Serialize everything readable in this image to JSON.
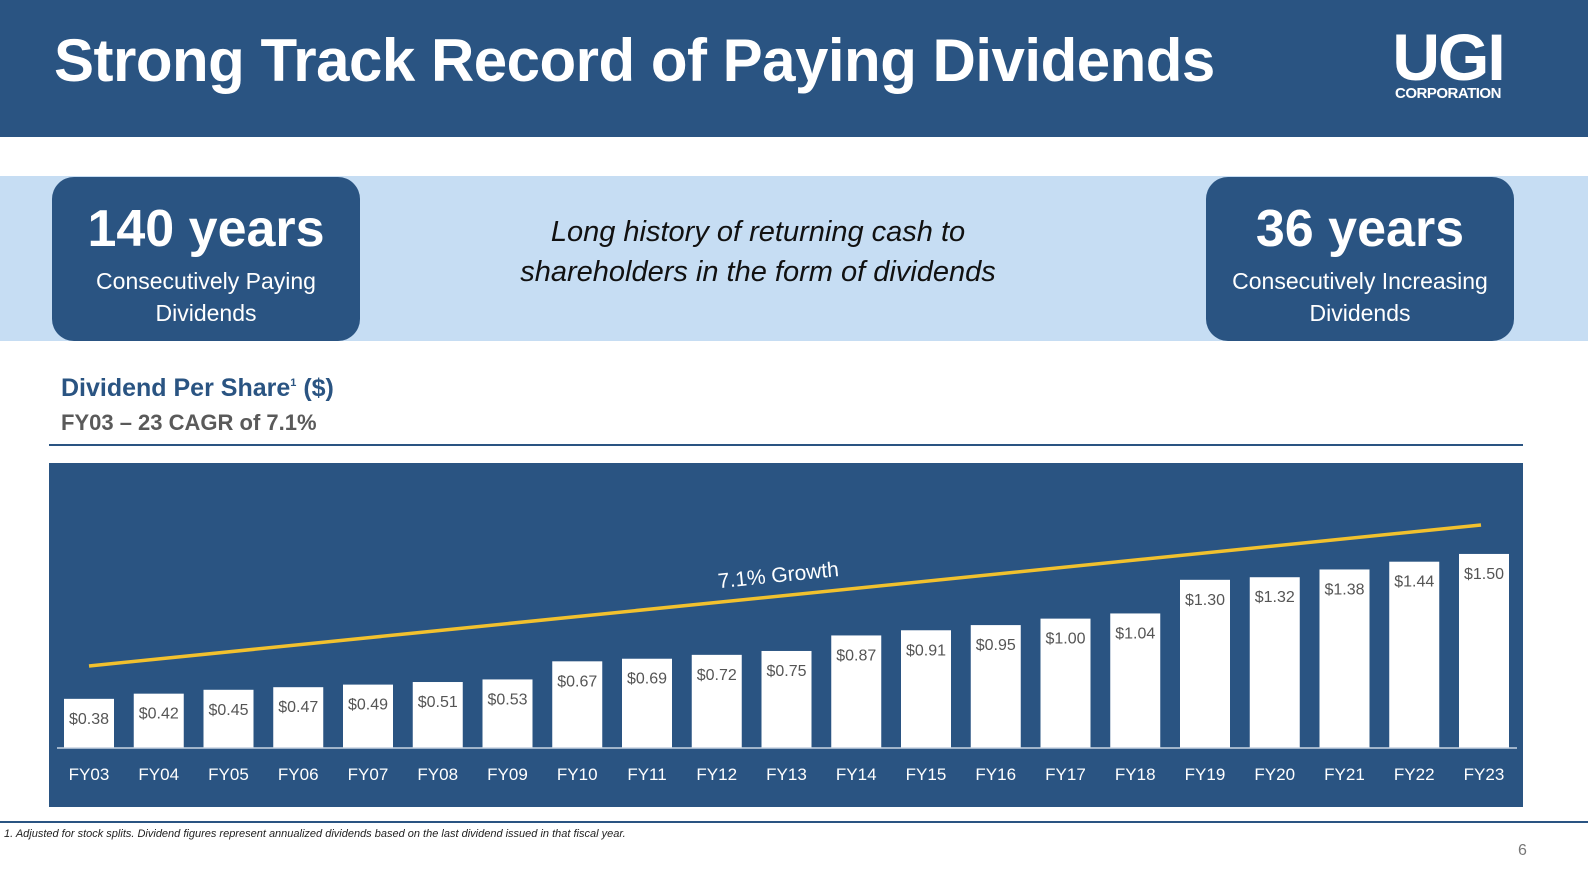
{
  "header": {
    "title": "Strong Track Record of Paying Dividends",
    "logo": {
      "main": "UGI",
      "sub": "CORPORATION"
    }
  },
  "stats": {
    "left": {
      "value": "140 years",
      "label": "Consecutively Paying Dividends"
    },
    "right": {
      "value": "36 years",
      "label": "Consecutively Increasing Dividends"
    }
  },
  "tagline": "Long history of returning cash to shareholders in the form of dividends",
  "chart_heading": {
    "title": "Dividend Per Share",
    "title_footnote_mark": "1",
    "title_unit": "($)",
    "subtitle": "FY03 – 23 CAGR of 7.1%"
  },
  "chart_data": {
    "type": "bar",
    "categories": [
      "FY03",
      "FY04",
      "FY05",
      "FY06",
      "FY07",
      "FY08",
      "FY09",
      "FY10",
      "FY11",
      "FY12",
      "FY13",
      "FY14",
      "FY15",
      "FY16",
      "FY17",
      "FY18",
      "FY19",
      "FY20",
      "FY21",
      "FY22",
      "FY23"
    ],
    "values": [
      0.38,
      0.42,
      0.45,
      0.47,
      0.49,
      0.51,
      0.53,
      0.67,
      0.69,
      0.72,
      0.75,
      0.87,
      0.91,
      0.95,
      1.0,
      1.04,
      1.3,
      1.32,
      1.38,
      1.44,
      1.5
    ],
    "data_labels": [
      "$0.38",
      "$0.42",
      "$0.45",
      "$0.47",
      "$0.49",
      "$0.51",
      "$0.53",
      "$0.67",
      "$0.69",
      "$0.72",
      "$0.75",
      "$0.87",
      "$0.91",
      "$0.95",
      "$1.00",
      "$1.04",
      "$1.30",
      "$1.32",
      "$1.38",
      "$1.44",
      "$1.50"
    ],
    "trend_annotation": "7.1% Growth",
    "title": "Dividend Per Share ($)",
    "ylim": [
      0,
      1.6
    ],
    "colors": {
      "background": "#2a5482",
      "bar": "#ffffff",
      "trend": "#f2c12e",
      "label": "#555555",
      "tick": "#ffffff"
    }
  },
  "footnote": "1. Adjusted for stock splits. Dividend figures represent annualized dividends based on the last dividend issued in that fiscal year.",
  "page_number": "6"
}
